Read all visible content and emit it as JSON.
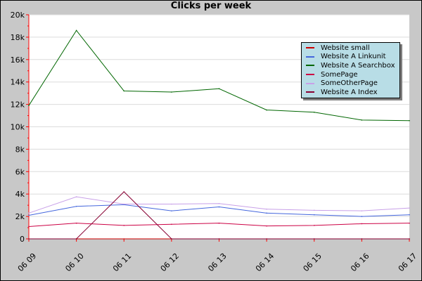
{
  "chart_data": {
    "type": "line",
    "title": "Clicks per week",
    "xlabel": "",
    "ylabel": "",
    "categories": [
      "06 09",
      "06 10",
      "06 11",
      "06 12",
      "06 13",
      "06 14",
      "06 15",
      "06 16",
      "06 17"
    ],
    "ylim": [
      0,
      20000
    ],
    "yticks": [
      0,
      2000,
      4000,
      6000,
      8000,
      10000,
      12000,
      14000,
      16000,
      18000,
      20000
    ],
    "ytick_labels": [
      "0",
      "2k",
      "4k",
      "6k",
      "8k",
      "10k",
      "12k",
      "14k",
      "16k",
      "18k",
      "20k"
    ],
    "grid": true,
    "legend_position": "top-right",
    "series": [
      {
        "name": "Website small",
        "color": "#cc0000",
        "values": [
          0,
          0,
          0,
          0,
          0,
          0,
          0,
          0,
          0
        ]
      },
      {
        "name": "Website A Linkunit",
        "color": "#4466dd",
        "values": [
          2100,
          2900,
          3050,
          2500,
          2850,
          2300,
          2150,
          2000,
          2150
        ]
      },
      {
        "name": "Website A Searchbox",
        "color": "#006600",
        "values": [
          11900,
          18600,
          13200,
          13100,
          13400,
          11500,
          11300,
          10600,
          10550
        ]
      },
      {
        "name": "SomePage",
        "color": "#cc0044",
        "values": [
          1100,
          1400,
          1200,
          1300,
          1400,
          1150,
          1200,
          1350,
          1400
        ]
      },
      {
        "name": "SomeOtherPage",
        "color": "#c8a0e8",
        "values": [
          2300,
          3750,
          3100,
          3100,
          3150,
          2650,
          2550,
          2500,
          2750
        ]
      },
      {
        "name": "Website A Index",
        "color": "#880033",
        "values": [
          0,
          0,
          4200,
          0,
          0,
          0,
          0,
          0,
          0
        ]
      }
    ]
  }
}
